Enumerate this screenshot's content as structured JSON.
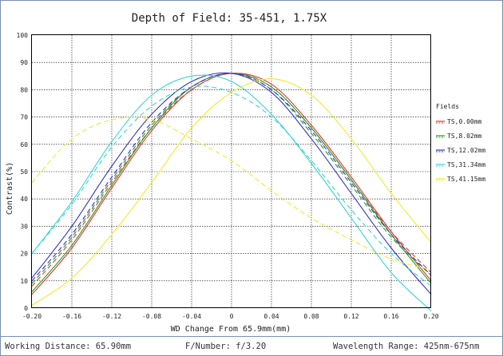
{
  "chart_data": {
    "type": "line",
    "title": "Depth of Field: 35-451, 1.75X",
    "xlabel": "WD Change From 65.9mm(mm)",
    "ylabel": "Contrast(%)",
    "xlim": [
      -0.2,
      0.2
    ],
    "ylim": [
      0,
      100
    ],
    "x_ticks": [
      "-0.20",
      "-0.16",
      "-0.12",
      "-0.08",
      "-0.04",
      "0",
      "0.04",
      "0.08",
      "0.12",
      "0.16",
      "0.20"
    ],
    "y_ticks": [
      "0",
      "10",
      "20",
      "30",
      "40",
      "50",
      "60",
      "70",
      "80",
      "90",
      "100"
    ],
    "grid": true,
    "legend_title": "Fields",
    "legend_position": "right",
    "x": [
      -0.2,
      -0.16,
      -0.12,
      -0.08,
      -0.04,
      0,
      0.04,
      0.08,
      0.12,
      0.16,
      0.2
    ],
    "series": [
      {
        "name": "TS,0.00mm",
        "color": "#e03a2a",
        "style": "solid",
        "values": [
          5,
          22,
          44,
          65,
          80,
          86,
          82,
          67,
          48,
          28,
          10
        ]
      },
      {
        "name": "TS,0.00mm",
        "color": "#e03a2a",
        "style": "dashed",
        "values": [
          8,
          25,
          46,
          66,
          80,
          86,
          81,
          66,
          47,
          28,
          13
        ]
      },
      {
        "name": "TS,8.02mm",
        "color": "#2a9a2a",
        "style": "solid",
        "values": [
          6,
          23,
          45,
          66,
          81,
          86,
          81,
          66,
          47,
          27,
          9
        ]
      },
      {
        "name": "TS,8.02mm",
        "color": "#2a9a2a",
        "style": "dashed",
        "values": [
          9,
          26,
          47,
          67,
          81,
          86,
          80,
          64,
          45,
          26,
          12
        ]
      },
      {
        "name": "TS,12.02mm",
        "color": "#3232c8",
        "style": "solid",
        "values": [
          11,
          30,
          52,
          71,
          83,
          86,
          79,
          62,
          42,
          22,
          5
        ]
      },
      {
        "name": "TS,12.02mm",
        "color": "#3232c8",
        "style": "dashed",
        "values": [
          10,
          27,
          48,
          68,
          81,
          86,
          80,
          65,
          46,
          27,
          12
        ]
      },
      {
        "name": "TS,31.34mm",
        "color": "#38d4d4",
        "style": "solid",
        "values": [
          20,
          39,
          61,
          78,
          85,
          83,
          71,
          53,
          33,
          13,
          -1
        ]
      },
      {
        "name": "TS,31.34mm",
        "color": "#38d4d4",
        "style": "dashed",
        "values": [
          20,
          38,
          59,
          74,
          81,
          79,
          70,
          54,
          36,
          20,
          8
        ]
      },
      {
        "name": "TS,41.15mm",
        "color": "#f2ea28",
        "style": "solid",
        "values": [
          1,
          11,
          27,
          46,
          66,
          79,
          84,
          78,
          62,
          42,
          24
        ]
      },
      {
        "name": "TS,41.15mm",
        "color": "#f2ea28",
        "style": "dashed",
        "values": [
          46,
          62,
          69,
          69,
          62,
          54,
          43,
          33,
          25,
          18,
          14
        ]
      }
    ]
  },
  "legend": {
    "title": "Fields",
    "items": [
      {
        "label": "TS,0.00mm",
        "color": "#e03a2a"
      },
      {
        "label": "TS,8.02mm",
        "color": "#2a9a2a"
      },
      {
        "label": "TS,12.02mm",
        "color": "#3232c8"
      },
      {
        "label": "TS,31.34mm",
        "color": "#38d4d4"
      },
      {
        "label": "TS,41.15mm",
        "color": "#f2ea28"
      }
    ]
  },
  "footer": {
    "working_distance": "Working Distance: 65.90mm",
    "f_number": "F/Number: f/3.20",
    "wavelength": "Wavelength Range: 425nm-675nm"
  },
  "colors": {
    "border": "#7a8fb5",
    "grid": "#000000"
  }
}
